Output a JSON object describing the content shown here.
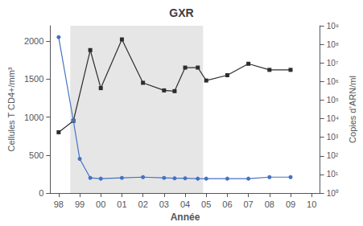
{
  "chart_data": {
    "type": "line",
    "title": "GXR",
    "xlabel": "Année",
    "ylabel": "Cellules T CD4+/mm³",
    "y2label": "Copies d’ARN/ml",
    "series": [
      {
        "x": [
          98,
          98.7,
          99.5,
          100,
          101,
          102,
          103,
          103.5,
          104,
          104.6,
          105,
          106,
          107,
          108,
          109
        ],
        "values": [
          800,
          950,
          1880,
          1380,
          2020,
          1450,
          1350,
          1340,
          1650,
          1650,
          1480,
          1550,
          1700,
          1620,
          1620
        ],
        "color": "#2d2d2d",
        "marker": "square"
      },
      {
        "x": [
          98,
          98.7,
          99,
          99.5,
          100,
          101,
          102,
          103,
          103.5,
          104,
          104.6,
          105,
          106,
          107,
          108,
          109
        ],
        "values": [
          2050,
          950,
          450,
          200,
          190,
          200,
          210,
          200,
          195,
          195,
          190,
          190,
          190,
          190,
          210,
          210
        ],
        "color": "#4472c4",
        "marker": "circle"
      }
    ],
    "spans": [
      {
        "x": [
          98.55,
          104.85
        ],
        "color": "#e6e6e6"
      }
    ],
    "xlim": [
      97.6,
      110.4
    ],
    "xticks": [
      98,
      99,
      {
        "value": 100,
        "label": "00"
      },
      {
        "value": 101,
        "label": "01"
      },
      {
        "value": 102,
        "label": "02"
      },
      {
        "value": 103,
        "label": "03"
      },
      {
        "value": 104,
        "label": "04"
      },
      {
        "value": 105,
        "label": "05"
      },
      {
        "value": 106,
        "label": "06"
      },
      {
        "value": 107,
        "label": "07"
      },
      {
        "value": 108,
        "label": "08"
      },
      {
        "value": 109,
        "label": "09"
      },
      {
        "value": 110,
        "label": "10"
      }
    ],
    "ylim": [
      0,
      2200
    ],
    "yticks": [
      0,
      500,
      1000,
      1500,
      2000
    ],
    "y2lim": [
      1,
      1000000000
    ],
    "y2ticks": [
      {
        "value": 1,
        "label": "10⁰"
      },
      {
        "value": 10,
        "label": "10¹"
      },
      {
        "value": 100,
        "label": "10²"
      },
      {
        "value": 1000,
        "label": "10³"
      },
      {
        "value": 10000,
        "label": "10⁴"
      },
      {
        "value": 100000,
        "label": "10⁵"
      },
      {
        "value": 1000000,
        "label": "10⁶"
      },
      {
        "value": 10000000,
        "label": "10⁷"
      },
      {
        "value": 100000000,
        "label": "10⁸"
      },
      {
        "value": 1000000000,
        "label": "10⁹"
      }
    ],
    "log": "y2",
    "grid": false
  }
}
